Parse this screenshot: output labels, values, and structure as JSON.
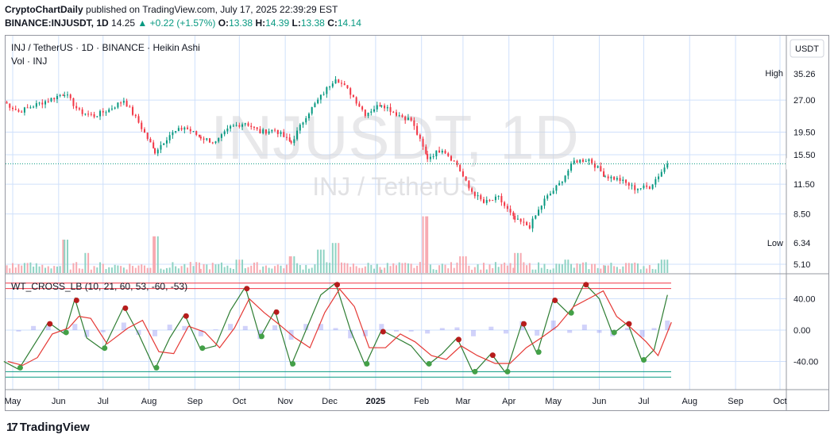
{
  "header": {
    "publisher": "CryptoChartDaily",
    "published_text": "published on TradingView.com, July 17, 2025 22:39:29 EST",
    "symbol_line": "BINANCE:INJUSDT, 1D",
    "last": "14.25",
    "change": "+0.22 (+1.57%)",
    "o_label": "O:",
    "o": "13.38",
    "h_label": "H:",
    "h": "14.39",
    "l_label": "L:",
    "l": "13.38",
    "c_label": "C:",
    "c": "14.14"
  },
  "pane": {
    "title": "INJ / TetherUS · 1D · BINANCE · Heikin Ashi",
    "vol_label": "Vol · INJ",
    "watermark_symbol": "INJUSDT, 1D",
    "watermark_name": "INJ / TetherUS",
    "indicator_label": "WT_CROSS_LB (10, 21, 60, 53, -60, -53)",
    "currency_button": "USDT",
    "high_label": "High",
    "high_value": "35.26",
    "low_label": "Low",
    "low_value": "6.34"
  },
  "brand": {
    "name": "TradingView",
    "logo_glyph": "17"
  },
  "colors": {
    "up": "#089981",
    "down": "#f23645",
    "wave1": "#2e7d32",
    "wave2": "#e53935",
    "hist": "#7b7ff0",
    "grid": "#cfe0fb"
  },
  "chart_data": [
    {
      "type": "candlestick",
      "title": "INJ / TetherUS · 1D · BINANCE · Heikin Ashi",
      "scale": "log",
      "y_ticks": [
        "27.00",
        "19.50",
        "15.50",
        "11.50",
        "8.50",
        "5.10"
      ],
      "y_tick_values": [
        27.0,
        19.5,
        15.5,
        11.5,
        8.5,
        5.1
      ],
      "x_ticks": [
        "May",
        "Jun",
        "Jul",
        "Aug",
        "Sep",
        "Oct",
        "Nov",
        "Dec",
        "2025",
        "Feb",
        "Mar",
        "Apr",
        "May",
        "Jun",
        "Jul",
        "Aug",
        "Sep",
        "Oct"
      ],
      "x_tick_dates": [
        "2024-05-01",
        "2024-06-01",
        "2024-07-01",
        "2024-08-01",
        "2024-09-01",
        "2024-10-01",
        "2024-11-01",
        "2024-12-01",
        "2025-01-01",
        "2025-02-01",
        "2025-03-01",
        "2025-04-01",
        "2025-05-01",
        "2025-06-01",
        "2025-07-01",
        "2025-08-01",
        "2025-09-01",
        "2025-10-01"
      ],
      "last_price": 14.14,
      "high": 35.26,
      "low": 6.34,
      "close_series": {
        "dates": [
          "2024-04-25",
          "2024-05-05",
          "2024-05-15",
          "2024-05-25",
          "2024-06-05",
          "2024-06-15",
          "2024-06-25",
          "2024-07-05",
          "2024-07-15",
          "2024-07-25",
          "2024-08-05",
          "2024-08-15",
          "2024-08-25",
          "2024-09-05",
          "2024-09-15",
          "2024-09-25",
          "2024-10-05",
          "2024-10-15",
          "2024-10-25",
          "2024-11-05",
          "2024-11-15",
          "2024-11-25",
          "2024-12-05",
          "2024-12-15",
          "2024-12-25",
          "2025-01-05",
          "2025-01-15",
          "2025-01-25",
          "2025-02-05",
          "2025-02-15",
          "2025-02-25",
          "2025-03-05",
          "2025-03-15",
          "2025-03-25",
          "2025-04-05",
          "2025-04-15",
          "2025-04-25",
          "2025-05-05",
          "2025-05-15",
          "2025-05-25",
          "2025-06-05",
          "2025-06-15",
          "2025-06-25",
          "2025-07-05",
          "2025-07-17"
        ],
        "values": [
          26.5,
          24.0,
          25.5,
          27.0,
          29.0,
          24.0,
          23.0,
          24.5,
          27.0,
          21.5,
          16.0,
          19.0,
          20.5,
          18.5,
          17.5,
          20.5,
          21.5,
          19.5,
          20.0,
          17.5,
          23.0,
          28.0,
          34.0,
          29.0,
          23.5,
          26.0,
          23.5,
          22.0,
          15.0,
          16.5,
          14.0,
          11.0,
          9.5,
          10.0,
          8.0,
          7.5,
          9.8,
          11.5,
          14.5,
          14.8,
          12.5,
          12.0,
          11.0,
          11.2,
          14.14
        ]
      }
    },
    {
      "type": "bar",
      "title": "Vol · INJ",
      "dates": [
        "2024-05-10",
        "2024-06-05",
        "2024-06-20",
        "2024-08-05",
        "2024-10-01",
        "2024-11-05",
        "2024-11-25",
        "2024-12-05",
        "2025-02-03",
        "2025-03-01",
        "2025-04-07",
        "2025-05-10",
        "2025-06-20",
        "2025-07-15"
      ],
      "values": [
        3,
        10,
        6,
        11,
        4,
        5,
        7,
        9,
        17,
        5,
        6,
        4,
        3,
        4
      ]
    },
    {
      "type": "line",
      "title": "WT_CROSS_LB (10, 21, 60, 53, -60, -53)",
      "y_ticks": [
        "40.00",
        "0.00",
        "-40.00"
      ],
      "y_tick_values": [
        40,
        0,
        -40
      ],
      "levels": [
        60,
        53,
        -53,
        -60
      ],
      "series": [
        {
          "values_dates": [
            "2024-04-25",
            "2024-05-05",
            "2024-05-15",
            "2024-05-25",
            "2024-06-05",
            "2024-06-12",
            "2024-06-20",
            "2024-07-01",
            "2024-07-15",
            "2024-07-25",
            "2024-08-05",
            "2024-08-15",
            "2024-08-25",
            "2024-09-05",
            "2024-09-15",
            "2024-09-25",
            "2024-10-05",
            "2024-10-15",
            "2024-10-25",
            "2024-11-05",
            "2024-11-15",
            "2024-11-25",
            "2024-12-05",
            "2024-12-15",
            "2024-12-25",
            "2025-01-05",
            "2025-01-15",
            "2025-01-25",
            "2025-02-05",
            "2025-02-15",
            "2025-02-25",
            "2025-03-08",
            "2025-03-20",
            "2025-03-30",
            "2025-04-10",
            "2025-04-20",
            "2025-05-01",
            "2025-05-12",
            "2025-05-22",
            "2025-06-01",
            "2025-06-10",
            "2025-06-20",
            "2025-06-30",
            "2025-07-08",
            "2025-07-17"
          ],
          "values": [
            -40,
            -50,
            -20,
            10,
            -5,
            40,
            -10,
            -25,
            30,
            -5,
            -50,
            -10,
            20,
            -25,
            -20,
            25,
            55,
            -10,
            25,
            -45,
            0,
            45,
            60,
            0,
            -45,
            0,
            -10,
            -20,
            -45,
            -30,
            -10,
            -55,
            -30,
            -55,
            10,
            -30,
            40,
            20,
            60,
            40,
            -5,
            10,
            -40,
            -25,
            45
          ]
        }
      ]
    }
  ]
}
